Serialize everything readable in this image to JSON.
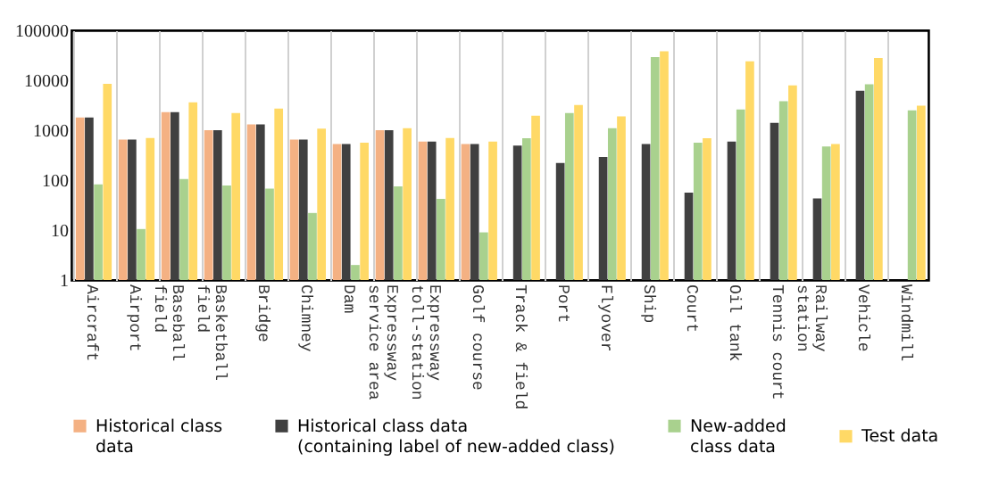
{
  "chart_data": {
    "type": "bar",
    "categories": [
      "Aircraft",
      "Airport",
      "Baseball\nfield",
      "Basketball\nfield",
      "Bridge",
      "Chimney",
      "Dam",
      "Expressway\nservice area",
      "Expressway\ntoll-station",
      "Golf course",
      "Track & field",
      "Port",
      "Flyover",
      "Ship",
      "Court",
      "Oil tank",
      "Tennis court",
      "Railway\nstation",
      "Vehicle",
      "Windmill"
    ],
    "series": [
      {
        "name": "Historical class\ndata",
        "color": "#f4b183",
        "values": [
          1800,
          650,
          2300,
          1000,
          1300,
          650,
          530,
          1000,
          590,
          530,
          null,
          null,
          null,
          null,
          null,
          null,
          null,
          null,
          null,
          null
        ]
      },
      {
        "name": "Historical class data\n(containing label of new-added class)",
        "color": "#404040",
        "values": [
          1800,
          650,
          2300,
          1000,
          1300,
          650,
          530,
          1000,
          590,
          530,
          490,
          220,
          290,
          530,
          56,
          590,
          1400,
          43,
          6200,
          null
        ]
      },
      {
        "name": "New-added\nclass data",
        "color": "#a9d18e",
        "values": [
          82,
          10.5,
          105,
          78,
          68,
          22,
          2,
          75,
          42,
          9,
          690,
          2200,
          1100,
          29000,
          560,
          2600,
          3800,
          470,
          8300,
          2500
        ]
      },
      {
        "name": "Test data",
        "color": "#ffd966",
        "values": [
          8500,
          700,
          3600,
          2200,
          2700,
          1070,
          560,
          1100,
          700,
          590,
          1950,
          3200,
          1900,
          38000,
          690,
          24000,
          7900,
          530,
          28000,
          3100
        ]
      }
    ],
    "log": true,
    "ylim": [
      1,
      100000
    ],
    "yticks": [
      1,
      10,
      100,
      1000,
      10000,
      100000
    ],
    "grid": "x",
    "legend": "bottom"
  }
}
